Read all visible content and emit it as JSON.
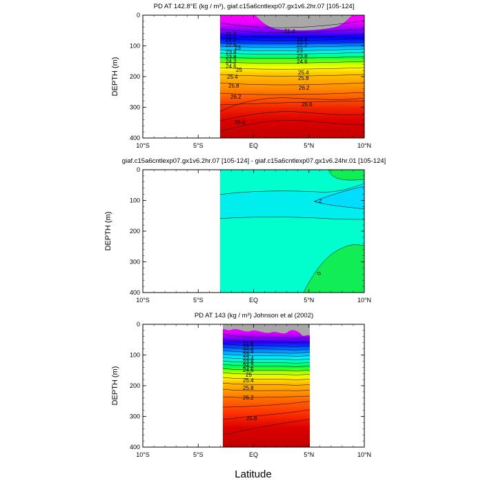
{
  "figure": {
    "xlabel": "Latitude"
  },
  "chart_data": [
    {
      "type": "heatmap",
      "title": "PD AT 142.8°E (kg / m³), giaf.c15a6cntlexp07.gx1v6.2hr.07 [105-124]",
      "ylabel": "DEPTH (m)",
      "x_ticks": [
        "10°S",
        "5°S",
        "EQ",
        "5°N",
        "10°N"
      ],
      "y_ticks": [
        "0",
        "100",
        "200",
        "300",
        "400"
      ],
      "xlim_deg": [
        -10,
        10
      ],
      "ylim_m": [
        400,
        0
      ],
      "data_extent_lat": [
        -3.1,
        10
      ],
      "contour_levels": [
        21.4,
        21.8,
        22.2,
        22.6,
        23,
        23.4,
        23.8,
        24.2,
        24.6,
        25,
        25.4,
        25.8,
        26.2,
        26.6
      ],
      "contour_labels_shown": [
        "21.4",
        "21.8",
        "22.2",
        "22.6",
        "23",
        "23.4",
        "23.8",
        "24.2",
        "24.6",
        "25",
        "25.4",
        "25.8",
        "26.2",
        "26.6"
      ],
      "missing_color": "#a8a8a8"
    },
    {
      "type": "heatmap",
      "title": "giaf.c15a6cntlexp07.gx1v6.2hr.07 [105-124] - giaf.c15a6cntlexp07.gx1v6.24hr.01 [105-124]",
      "ylabel": "DEPTH (m)",
      "x_ticks": [
        "10°S",
        "5°S",
        "EQ",
        "5°N",
        "10°N"
      ],
      "y_ticks": [
        "0",
        "100",
        "200",
        "300",
        "400"
      ],
      "xlim_deg": [
        -10,
        10
      ],
      "ylim_m": [
        400,
        0
      ],
      "data_extent_lat": [
        -3.1,
        10
      ],
      "contour_labels_shown": [
        "-.2",
        "0"
      ],
      "colors": {
        "main": "#00ffcc",
        "minimum": "#00ddff",
        "positive": "#11ee55"
      }
    },
    {
      "type": "heatmap",
      "title": "PD AT 143 (kg / m³) Johnson et al (2002)",
      "ylabel": "DEPTH (m)",
      "x_ticks": [
        "10°S",
        "5°S",
        "EQ",
        "5°N",
        "10°N"
      ],
      "y_ticks": [
        "0",
        "100",
        "200",
        "300",
        "400"
      ],
      "xlim_deg": [
        -10,
        10
      ],
      "ylim_m": [
        400,
        0
      ],
      "data_extent_lat": [
        -2.8,
        5
      ],
      "contour_labels_shown": [
        "21.8",
        "22.2",
        "22.6",
        "23",
        "23.4",
        "23.8",
        "24.2",
        "24.6",
        "25",
        "25.4",
        "25.8",
        "26.2",
        "25.8"
      ],
      "missing_color": "#a8a8a8"
    }
  ]
}
